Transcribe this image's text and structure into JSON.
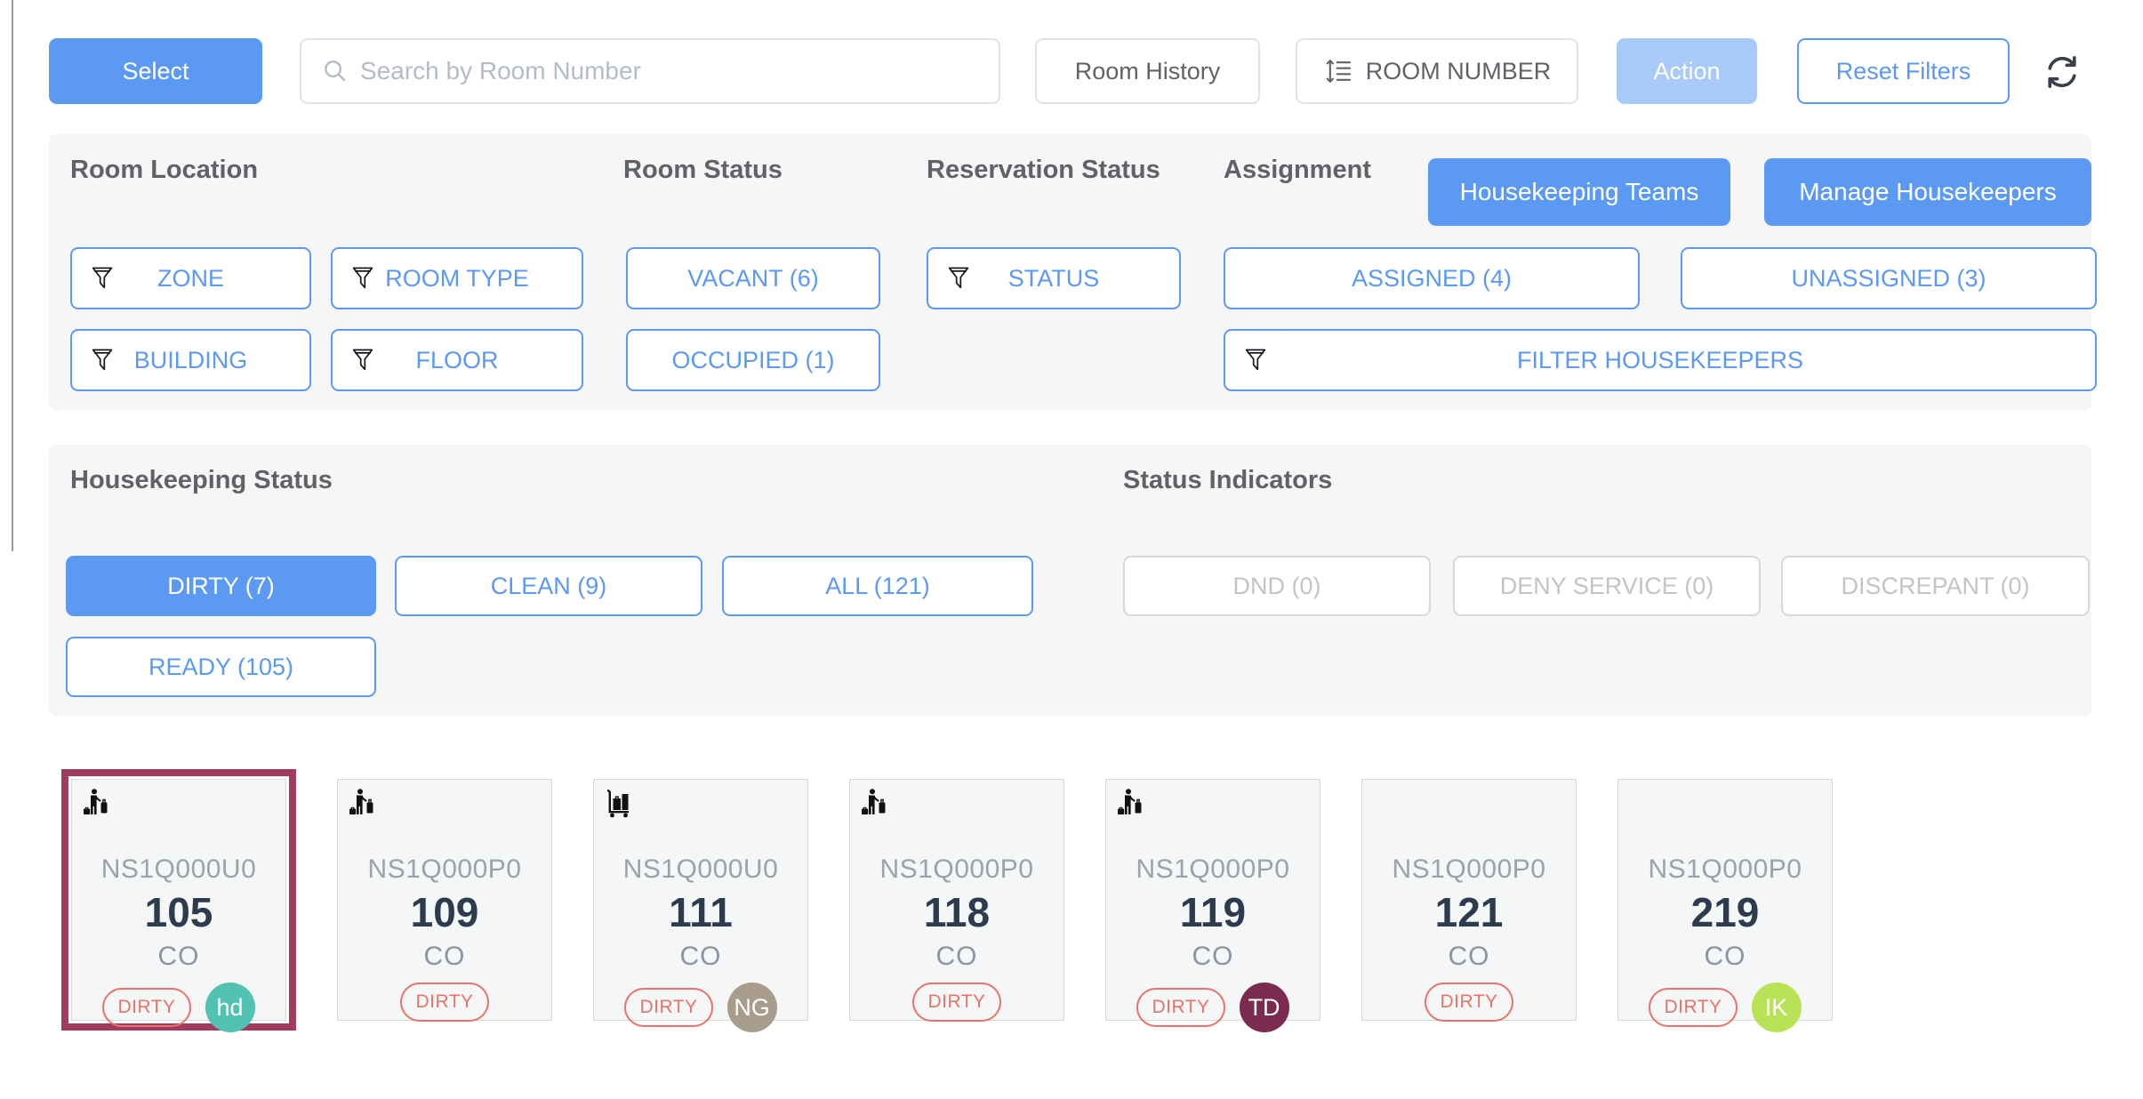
{
  "toolbar": {
    "select_label": "Select",
    "search_placeholder": "Search by Room Number",
    "room_history_label": "Room History",
    "sort_label": "ROOM NUMBER",
    "action_label": "Action",
    "reset_filters_label": "Reset Filters"
  },
  "filters_panel": {
    "room_location_title": "Room Location",
    "room_status_title": "Room Status",
    "reservation_status_title": "Reservation Status",
    "assignment_title": "Assignment",
    "housekeeping_teams_label": "Housekeeping Teams",
    "manage_housekeepers_label": "Manage Housekeepers",
    "zone_label": "ZONE",
    "room_type_label": "ROOM TYPE",
    "building_label": "BUILDING",
    "floor_label": "FLOOR",
    "vacant_label": "VACANT (6)",
    "occupied_label": "OCCUPIED (1)",
    "status_label": "STATUS",
    "assigned_label": "ASSIGNED (4)",
    "unassigned_label": "UNASSIGNED (3)",
    "filter_housekeepers_label": "FILTER HOUSEKEEPERS"
  },
  "status_panel": {
    "housekeeping_status_title": "Housekeeping Status",
    "status_indicators_title": "Status Indicators",
    "dirty_label": "DIRTY (7)",
    "clean_label": "CLEAN (9)",
    "all_label": "ALL (121)",
    "ready_label": "READY (105)",
    "dnd_label": "DND (0)",
    "deny_service_label": "DENY SERVICE (0)",
    "discrepant_label": "DISCREPANT (0)"
  },
  "rooms": [
    {
      "room_type": "NS1Q000U0",
      "number": "105",
      "reservation": "CO",
      "status": "DIRTY",
      "icon": "guest-with-luggage",
      "selected": true,
      "housekeeper": {
        "initials": "hd",
        "color": "#52c2b2"
      }
    },
    {
      "room_type": "NS1Q000P0",
      "number": "109",
      "reservation": "CO",
      "status": "DIRTY",
      "icon": "guest-with-luggage",
      "selected": false,
      "housekeeper": null
    },
    {
      "room_type": "NS1Q000U0",
      "number": "111",
      "reservation": "CO",
      "status": "DIRTY",
      "icon": "luggage-cart",
      "selected": false,
      "housekeeper": {
        "initials": "NG",
        "color": "#a89c8c"
      }
    },
    {
      "room_type": "NS1Q000P0",
      "number": "118",
      "reservation": "CO",
      "status": "DIRTY",
      "icon": "guest-with-luggage",
      "selected": false,
      "housekeeper": null
    },
    {
      "room_type": "NS1Q000P0",
      "number": "119",
      "reservation": "CO",
      "status": "DIRTY",
      "icon": "guest-with-luggage",
      "selected": false,
      "housekeeper": {
        "initials": "TD",
        "color": "#7b2a50"
      }
    },
    {
      "room_type": "NS1Q000P0",
      "number": "121",
      "reservation": "CO",
      "status": "DIRTY",
      "icon": null,
      "selected": false,
      "housekeeper": null
    },
    {
      "room_type": "NS1Q000P0",
      "number": "219",
      "reservation": "CO",
      "status": "DIRTY",
      "icon": null,
      "selected": false,
      "housekeeper": {
        "initials": "IK",
        "color": "#b8e356"
      }
    }
  ],
  "colors": {
    "primary_blue": "#5b99f2",
    "disabled_blue": "#a9c9f8",
    "panel_bg": "#f6f6f6",
    "dirty_red": "#e8736b",
    "selected_card_border": "#a23c5f"
  }
}
